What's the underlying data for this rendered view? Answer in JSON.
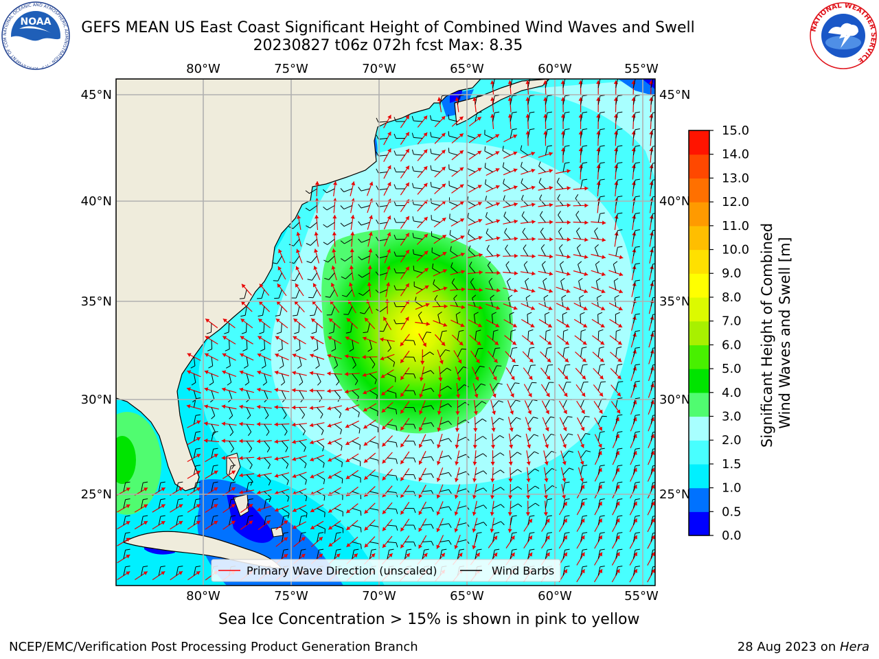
{
  "header": {
    "title": "GEFS MEAN US East Coast Significant Height of Combined Wind Waves and Swell",
    "subtitle": "20230827 t06z 072h fcst   Max: 8.35"
  },
  "logos": {
    "noaa_text": "NOAA",
    "noaa_ring": "NATIONAL OCEANIC AND ATMOSPHERIC ADMINISTRATION · U.S. DEPARTMENT OF COMMERCE",
    "nws_ring": "NATIONAL WEATHER SERVICE"
  },
  "map": {
    "lon_labels": [
      "80°W",
      "75°W",
      "70°W",
      "65°W",
      "60°W",
      "55°W"
    ],
    "lat_labels": [
      "45°N",
      "40°N",
      "35°N",
      "30°N",
      "25°N"
    ],
    "legend": {
      "wave_label": "Primary Wave Direction (unscaled)",
      "wave_color": "#ff0000",
      "barb_label": "Wind Barbs",
      "barb_color": "#000000"
    },
    "land_color": "#efecdc",
    "storm_center_lon_lat": [
      -68.5,
      33.5
    ],
    "max_value": 8.35
  },
  "colorbar": {
    "label": "Significant Height of Combined Wind Waves and Swell [m]",
    "ticks": [
      "0.0",
      "0.5",
      "1.0",
      "1.5",
      "2.0",
      "3.0",
      "4.0",
      "5.0",
      "6.0",
      "7.0",
      "8.0",
      "9.0",
      "10.0",
      "11.0",
      "12.0",
      "13.0",
      "14.0",
      "15.0"
    ],
    "colors": [
      "#0000ff",
      "#0072ff",
      "#00f0ff",
      "#48ffff",
      "#a8ffff",
      "#50fc70",
      "#00e400",
      "#48f000",
      "#a8f000",
      "#dcfa00",
      "#ffff00",
      "#ffe000",
      "#ffbe00",
      "#ff9a00",
      "#ff7000",
      "#ff4800",
      "#ff1400"
    ]
  },
  "footer": {
    "note": "Sea Ice Concentration > 15% is shown in pink to yellow",
    "left": "NCEP/EMC/Verification Post Processing Product Generation Branch",
    "right_prefix": "28 Aug 2023 on ",
    "right_host": "Hera"
  }
}
